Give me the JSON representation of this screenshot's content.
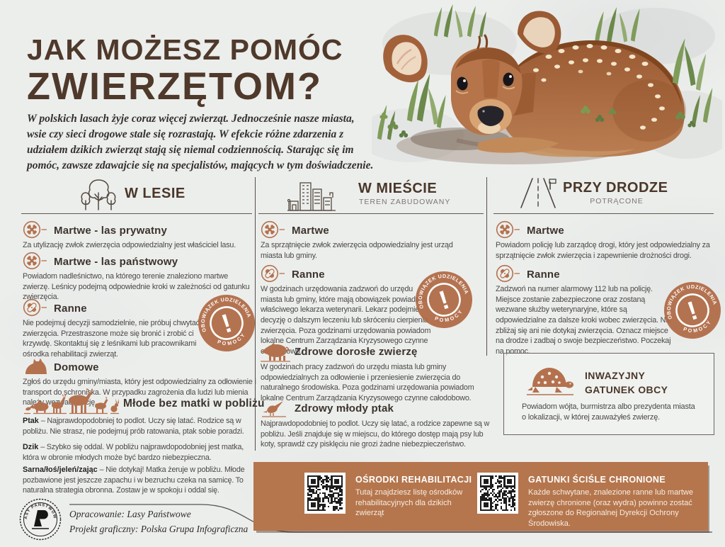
{
  "poster": {
    "title_line1": "JAK MOŻESZ POMÓC",
    "title_line2": "ZWIERZĘTOM?",
    "intro": "W polskich lasach żyje coraz więcej zwierząt. Jednocześnie nasze miasta, wsie czy sieci drogowe stale się rozrastają. W efekcie różne zdarzenia z udziałem dzikich zwierząt stają się niemal codziennością. Starając się im pomóc, zawsze zdawajcie się na specjalistów, mających w tym doświadczenie."
  },
  "colors": {
    "accent": "#b4714e",
    "band": "#b5764d",
    "title_brown": "#4f392b"
  },
  "stamp": {
    "arc_top": "OBOWIĄZEK UDZIELENIA",
    "arc_bottom": "POMOCY",
    "mark": "!"
  },
  "columns": [
    {
      "title": "W LESIE",
      "subtitle": "",
      "icon": "trees-icon",
      "items": [
        {
          "icon": "bones-icon",
          "title": "Martwe - las prywatny",
          "body": "Za utylizację zwłok zwierzęcia odpowiedzialny jest właściciel lasu."
        },
        {
          "icon": "bones-icon",
          "title": "Martwe - las państwowy",
          "body": "Powiadom nadleśnictwo, na którego terenie znaleziono martwe zwierzę. Leśnicy podejmą odpowiednie kroki w zależności od gatunku zwierzęcia."
        },
        {
          "icon": "bandage-icon",
          "title": "Ranne",
          "body": "Nie podejmuj decyzji samodzielnie, nie próbuj chwytać zwierzęcia. Przestraszone może się bronić i zrobić ci krzywdę. Skontaktuj się z leśnikami lub pracownikami ośrodka rehabilitacji zwierząt."
        },
        {
          "icon": "dog-icon",
          "title": "Domowe",
          "body": "Zgłoś do urzędu gminy/miasta, który jest odpowiedzialny za odłowienie i transport do schroniska. W przypadku zagrożenia dla ludzi lub mienia należy wezwać policję."
        },
        {
          "icon": "young-animals-icon",
          "title": "Młode bez matki w pobliżu",
          "subitems": [
            {
              "lead": "Ptak ",
              "body": "– Najprawdopodobniej to podlot. Uczy się latać. Rodzice są w pobliżu. Nie strasz, nie podejmuj prób ratowania, ptak sobie poradzi."
            },
            {
              "lead": "Dzik ",
              "body": "– Szybko się oddal. W pobliżu najprawdopodobniej jest matka, która w obronie młodych może być bardzo niebezpieczna."
            },
            {
              "lead": "Sarna/łoś/jeleń/zając ",
              "body": "– Nie dotykaj! Matka żeruje w pobliżu. Młode pozbawione jest jeszcze zapachu i w bezruchu czeka na samicę. To naturalna strategia obronna. Zostaw je w spokoju i oddal się."
            }
          ]
        }
      ]
    },
    {
      "title": "W MIEŚCIE",
      "subtitle": "TEREN ZABUDOWANY",
      "icon": "city-buildings-icon",
      "items": [
        {
          "icon": "bones-icon",
          "title": "Martwe",
          "body": "Za sprzątnięcie zwłok zwierzęcia odpowiedzialny jest urząd miasta lub gminy."
        },
        {
          "icon": "bandage-icon",
          "title": "Ranne",
          "body": "W godzinach urzędowania zadzwoń do urzędu miasta lub gminy, które mają obowiązek powiadomić właściwego lekarza weterynarii. Lekarz podejmie decyzję o dalszym leczeniu lub skróceniu cierpienia zwierzęcia. Poza godzinami urzędowania powiadom lokalne Centrum Zarządzania Kryzysowego czynne całodobowo."
        },
        {
          "icon": "boar-icon",
          "title": "Zdrowe dorosłe zwierzę",
          "body": "W godzinach pracy zadzwoń do urzędu miasta lub gminy odpowiedzialnych za odłowienie i przeniesienie zwierzęcia do naturalnego środowiska. Poza godzinami urzędowania powiadom lokalne Centrum Zarządzania Kryzysowego czynne całodobowo."
        },
        {
          "icon": "bird-icon",
          "title": "Zdrowy młody ptak",
          "body": "Najprawdopodobniej to podlot. Uczy się latać, a rodzice zapewne są w pobliżu. Jeśli znajduje się w miejscu, do którego dostęp mają psy lub koty, sprawdź czy pisklęciu nie grozi żadne niebezpieczeństwo."
        }
      ]
    },
    {
      "title": "PRZY DRODZE",
      "subtitle": "POTRĄCONE",
      "icon": "road-icon",
      "items": [
        {
          "icon": "bones-icon",
          "title": "Martwe",
          "body": "Powiadom policję lub zarządcę drogi, który jest odpowiedzialny za sprzątnięcie zwłok zwierzęcia i zapewnienie drożności drogi."
        },
        {
          "icon": "bandage-icon",
          "title": "Ranne",
          "body": "Zadzwoń na numer alarmowy 112 lub na policję. Miejsce zostanie zabezpieczone oraz zostaną wezwane służby weterynaryjne, które są odpowiedzialne za dalsze kroki wobec zwierzęcia. Nie zbliżaj się ani nie dotykaj zwierzęcia. Oznacz miejsce na drodze i zadbaj o swoje bezpieczeństwo. Poczekaj na pomoc."
        }
      ]
    }
  ],
  "invasive_box": {
    "title_line1": "INWAZYJNY",
    "title_line2": "GATUNEK OBCY",
    "body": "Powiadom wójta, burmistrza albo prezydenta miasta o lokalizacji, w której zauważyłeś zwierzę."
  },
  "band": {
    "sections": [
      {
        "title": "OŚRODKI REHABILITACJI",
        "body": "Tutaj znajdziesz listę ośrodków rehabilitacyjnych dla dzikich zwierząt"
      },
      {
        "title": "GATUNKI ŚCIŚLE CHRONIONE",
        "body": "Każde schwytane, znalezione ranne lub martwe zwierzę chronione (oraz wydra) powinno zostać zgłoszone do Regionalnej Dyrekcji Ochrony Środowiska."
      }
    ]
  },
  "footer": {
    "logo_text": "LASY PAŃSTWOWE",
    "credit_line1": "Opracowanie: Lasy Państwowe",
    "credit_line2": "Projekt graficzny: Polska Grupa Infograficzna"
  }
}
